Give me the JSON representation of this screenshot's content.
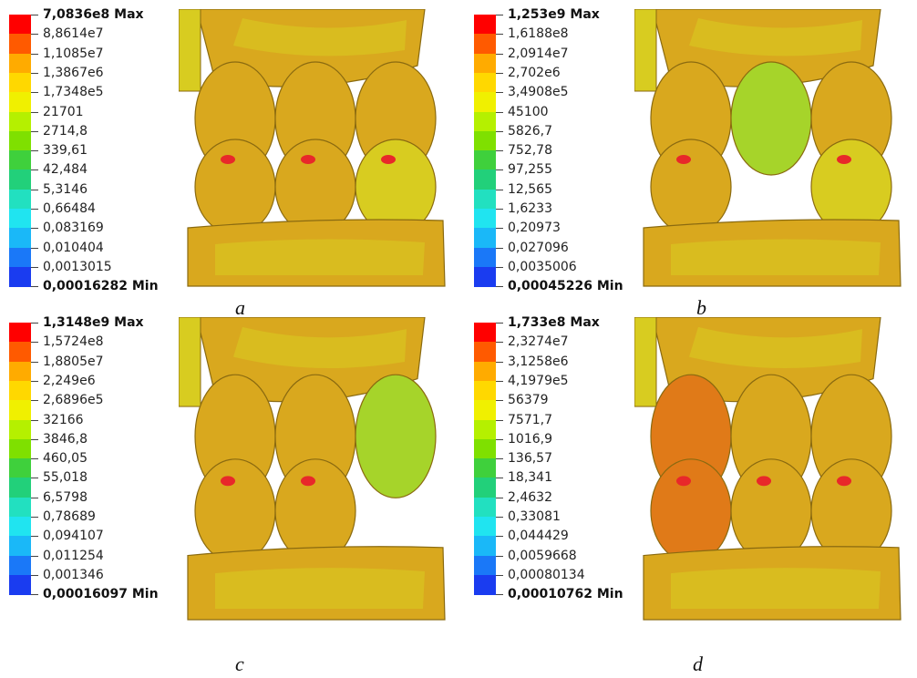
{
  "palette": [
    "#ff0000",
    "#ff5a00",
    "#ffab00",
    "#ffd800",
    "#f0f000",
    "#b5f000",
    "#7fe000",
    "#3fd03c",
    "#22d07a",
    "#22e0c0",
    "#20e4f0",
    "#1ab8f8",
    "#1a78f8",
    "#1a3cf0",
    "#0000ff"
  ],
  "model_colors": {
    "base": "#d9a81e",
    "yellow": "#d8cc20",
    "green": "#a6d42a",
    "orange": "#e07a18",
    "red": "#e8282a",
    "dark": "#8a6a10"
  },
  "panels": [
    {
      "caption": "a",
      "labels": [
        "7,0836e8 Max",
        "8,8614e7",
        "1,1085e7",
        "1,3867e6",
        "1,7348e5",
        "21701",
        "2714,8",
        "339,61",
        "42,484",
        "5,3146",
        "0,66484",
        "0,083169",
        "0,010404",
        "0,0013015",
        "0,00016282 Min"
      ]
    },
    {
      "caption": "b",
      "labels": [
        "1,253e9 Max",
        "1,6188e8",
        "2,0914e7",
        "2,702e6",
        "3,4908e5",
        "45100",
        "5826,7",
        "752,78",
        "97,255",
        "12,565",
        "1,6233",
        "0,20973",
        "0,027096",
        "0,0035006",
        "0,00045226 Min"
      ]
    },
    {
      "caption": "c",
      "labels": [
        "1,3148e9 Max",
        "1,5724e8",
        "1,8805e7",
        "2,249e6",
        "2,6896e5",
        "32166",
        "3846,8",
        "460,05",
        "55,018",
        "6,5798",
        "0,78689",
        "0,094107",
        "0,011254",
        "0,001346",
        "0,00016097 Min"
      ]
    },
    {
      "caption": "d",
      "labels": [
        "1,733e8 Max",
        "2,3274e7",
        "3,1258e6",
        "4,1979e5",
        "56379",
        "7571,7",
        "1016,9",
        "136,57",
        "18,341",
        "2,4632",
        "0,33081",
        "0,044429",
        "0,0059668",
        "0,00080134",
        "0,00010762 Min"
      ]
    }
  ]
}
